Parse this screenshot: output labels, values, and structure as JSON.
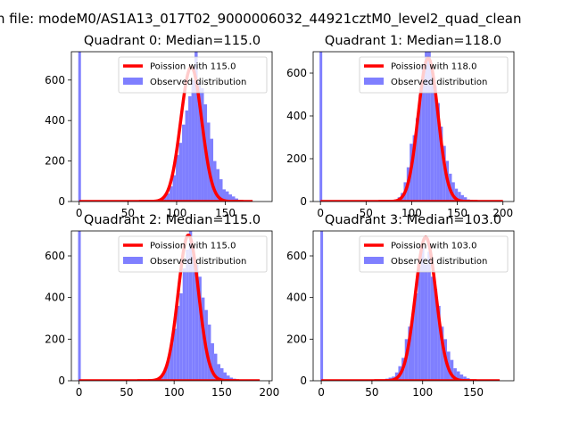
{
  "chart_data": {
    "suptitle": "n file: modeM0/AS1A13_017T02_9000006032_44921cztM0_level2_quad_clean",
    "charts": [
      {
        "type": "bar",
        "title": "Quadrant 0: Median=115.0",
        "xlim": [
          -8,
          198
        ],
        "ylim": [
          0,
          740
        ],
        "xticks": [
          0,
          50,
          100,
          150
        ],
        "yticks": [
          0,
          200,
          400,
          600
        ],
        "legend": [
          "Poission with 115.0",
          "Observed distribution"
        ],
        "legend_placement": "top-right",
        "poisson_mean": 115,
        "poisson_peak": 665,
        "hist_x_start": 80,
        "hist_bin_width": 3.2,
        "hist_values": [
          5,
          10,
          25,
          40,
          75,
          130,
          230,
          290,
          380,
          450,
          520,
          600,
          740,
          590,
          560,
          480,
          390,
          310,
          200,
          160,
          110,
          60,
          50,
          35,
          25,
          15,
          8,
          5
        ],
        "zero_bin": {
          "x": 0,
          "value": 740
        },
        "zero_line_xmax": 178
      },
      {
        "type": "bar",
        "title": "Quadrant 1: Median=118.0",
        "xlim": [
          -8,
          212
        ],
        "ylim": [
          0,
          700
        ],
        "xticks": [
          0,
          50,
          100,
          150,
          200
        ],
        "yticks": [
          0,
          200,
          400,
          600
        ],
        "legend": [
          "Poission with 118.0",
          "Observed distribution"
        ],
        "legend_placement": "top-right",
        "poisson_mean": 118,
        "poisson_peak": 670,
        "hist_x_start": 78,
        "hist_bin_width": 3.3,
        "hist_values": [
          5,
          10,
          20,
          40,
          90,
          160,
          270,
          310,
          390,
          500,
          640,
          700,
          700,
          620,
          540,
          460,
          350,
          260,
          190,
          130,
          90,
          60,
          45,
          30,
          20,
          10,
          8,
          5
        ],
        "zero_bin": {
          "x": 0,
          "value": 700
        },
        "zero_line_xmax": 200
      },
      {
        "type": "bar",
        "title": "Quadrant 2: Median=115.0",
        "xlim": [
          -8,
          203
        ],
        "ylim": [
          0,
          720
        ],
        "xticks": [
          0,
          50,
          100,
          150,
          200
        ],
        "yticks": [
          0,
          200,
          400,
          600
        ],
        "legend": [
          "Poission with 115.0",
          "Observed distribution"
        ],
        "legend_placement": "top-right",
        "poisson_mean": 115,
        "poisson_peak": 700,
        "hist_x_start": 76,
        "hist_bin_width": 3.3,
        "hist_values": [
          5,
          10,
          15,
          30,
          60,
          100,
          180,
          250,
          360,
          420,
          540,
          630,
          720,
          600,
          560,
          500,
          400,
          340,
          270,
          180,
          130,
          80,
          60,
          40,
          25,
          15,
          10,
          5
        ],
        "zero_bin": {
          "x": 0,
          "value": 720
        },
        "zero_line_xmax": 190
      },
      {
        "type": "bar",
        "title": "Quadrant 3: Median=103.0",
        "xlim": [
          -8,
          190
        ],
        "ylim": [
          0,
          720
        ],
        "xticks": [
          0,
          50,
          100,
          150
        ],
        "yticks": [
          0,
          200,
          400,
          600
        ],
        "legend": [
          "Poission with 103.0",
          "Observed distribution"
        ],
        "legend_placement": "top-right",
        "poisson_mean": 103,
        "poisson_peak": 690,
        "hist_x_start": 60,
        "hist_bin_width": 3.2,
        "hist_values": [
          5,
          10,
          15,
          20,
          40,
          70,
          110,
          200,
          260,
          320,
          420,
          550,
          640,
          560,
          620,
          500,
          440,
          360,
          260,
          200,
          140,
          100,
          60,
          45,
          30,
          20,
          12,
          6
        ],
        "zero_bin": {
          "x": 0,
          "value": 720
        },
        "zero_line_xmax": 176
      }
    ]
  }
}
